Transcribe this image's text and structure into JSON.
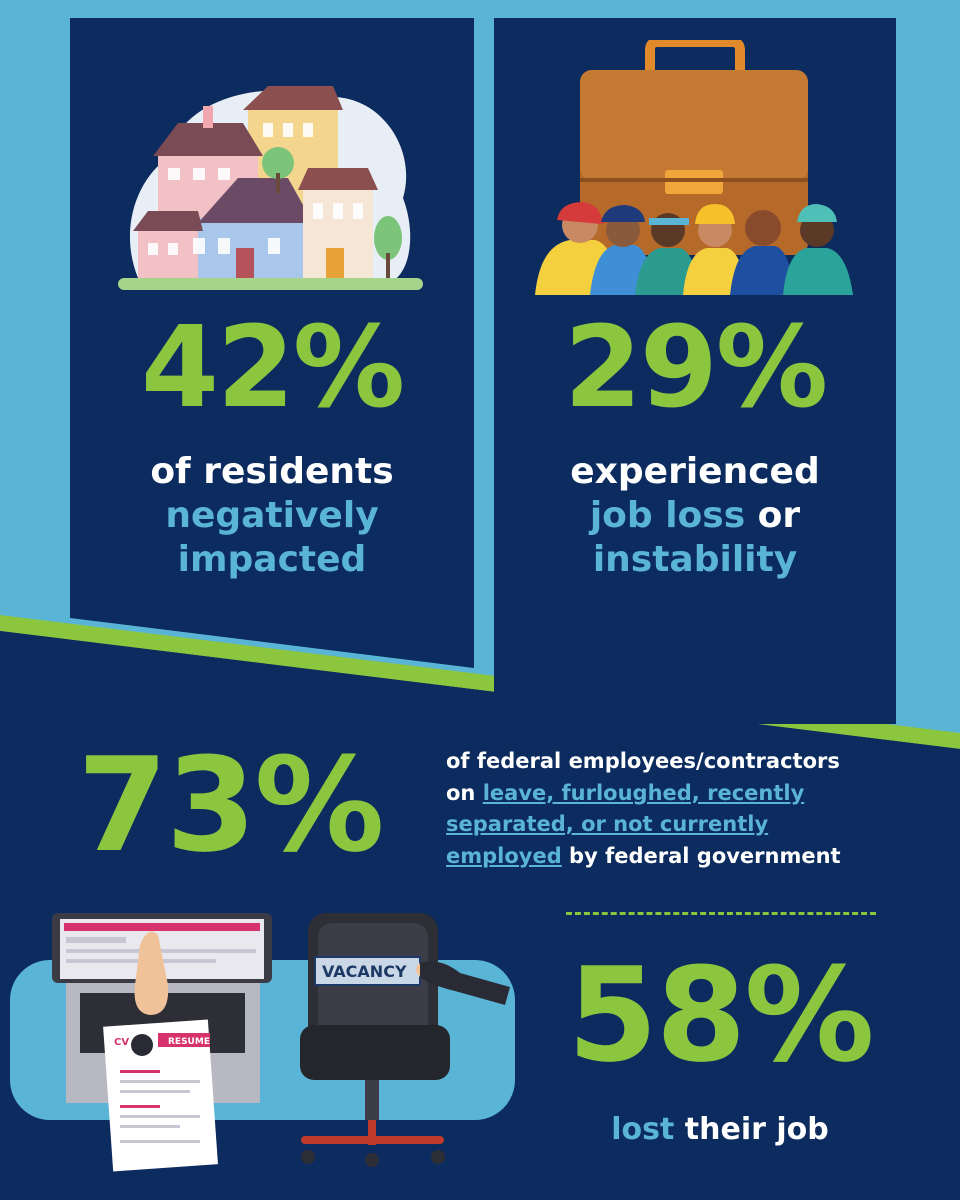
{
  "colors": {
    "navy": "#0c2b5e",
    "sky_blue": "#5ab4d6",
    "lime_green": "#8cc63f",
    "white": "#ffffff"
  },
  "stat_residents": {
    "value": "42%",
    "line1": "of residents",
    "line2": "negatively",
    "line3": "impacted",
    "illustration": "houses-illustration"
  },
  "stat_jobs": {
    "value": "29%",
    "line1": "experienced",
    "line2_highlight": "job loss",
    "line2_rest": " or",
    "line3": "instability",
    "illustration": "briefcase-workers-illustration"
  },
  "stat_federal": {
    "value": "73%",
    "text_line1": "of federal employees/contractors",
    "text_on": "on ",
    "link_line2": "leave, furloughed, recently",
    "link_line3": "separated, or not currently",
    "link_line4": "employed",
    "text_rest": " by federal government"
  },
  "stat_lost": {
    "value": "58%",
    "highlight": "lost",
    "rest": " their job",
    "illustration": "laptop-resume-vacancy-chair-illustration"
  },
  "illustration_text": {
    "cv": "CV",
    "resume": "RESUME",
    "vacancy": "VACANCY"
  }
}
